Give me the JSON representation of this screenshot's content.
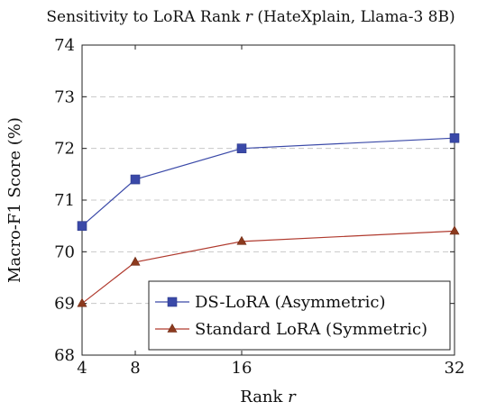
{
  "chart_data": {
    "type": "line",
    "title_main": "Sensitivity to LoRA Rank ",
    "title_var": "r",
    "title_tail": " (HateXplain, Llama-3 8B)",
    "xlabel_main": "Rank ",
    "xlabel_var": "r",
    "ylabel": "Macro-F1 Score (%)",
    "x": [
      4,
      8,
      16,
      32
    ],
    "xticks": [
      "4",
      "8",
      "16",
      "32"
    ],
    "yticks": [
      "68",
      "69",
      "70",
      "71",
      "72",
      "73",
      "74"
    ],
    "ylim": [
      68,
      74
    ],
    "grid": "horizontal dashed",
    "legend_position": "bottom-right",
    "series": [
      {
        "name": "DS-LoRA (Asymmetric)",
        "values": [
          70.5,
          71.4,
          72.0,
          72.2
        ],
        "color": "#3a49a8",
        "marker": "square"
      },
      {
        "name": "Standard LoRA (Symmetric)",
        "values": [
          69.0,
          69.8,
          70.2,
          70.4
        ],
        "color": "#b03a2e",
        "marker": "triangle"
      }
    ]
  }
}
